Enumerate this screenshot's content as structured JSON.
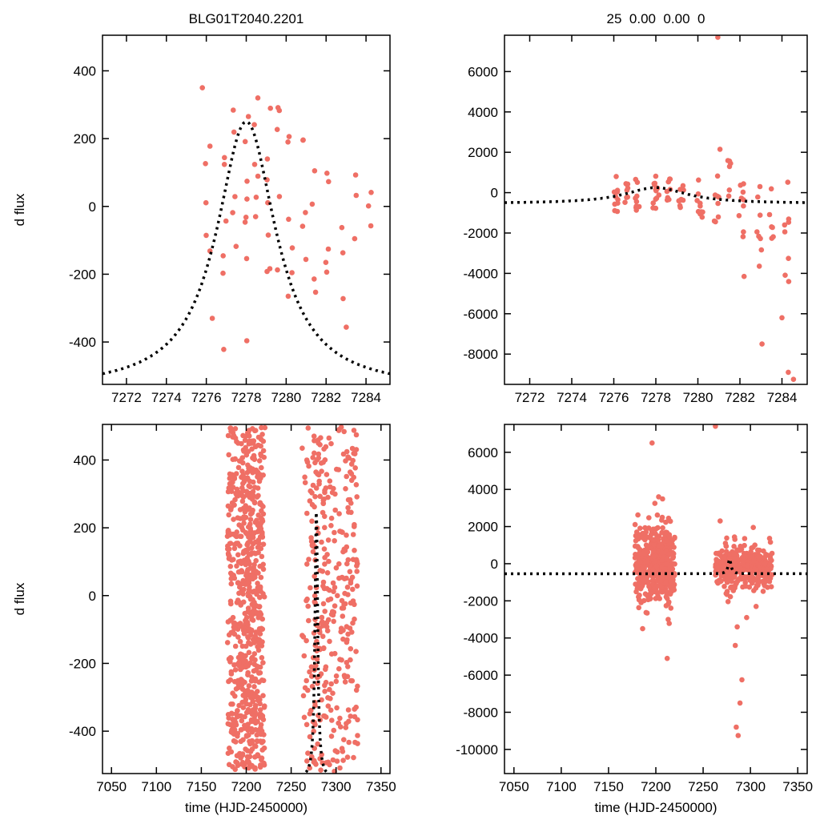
{
  "titles": {
    "top_left": "BLG01T2040.2201",
    "top_right": "25  0.00  0.00  0"
  },
  "axis_labels": {
    "y_left": "d flux",
    "x_bottom": "time (HJD-2450000)"
  },
  "colors": {
    "background": "#ffffff",
    "points": "#ef6f65",
    "model_curve": "#000000",
    "frame": "#000000"
  },
  "model_curve": {
    "shape": "microlensing_bump",
    "t0": 7278,
    "base": -540,
    "amplitude": 790,
    "width": 1.8,
    "power": 1.0
  },
  "chart_data": [
    {
      "id": "top-left",
      "type": "scatter",
      "title": "BLG01T2040.2201",
      "ylabel": "d flux",
      "xlabel": "",
      "xlim": [
        7270.8,
        7285.2
      ],
      "xticks": [
        7272,
        7274,
        7276,
        7278,
        7280,
        7282,
        7284
      ],
      "ylim": [
        -525,
        505
      ],
      "yticks": [
        -400,
        -200,
        0,
        200,
        400
      ],
      "grid": false,
      "show_curve": true,
      "point_clusters": [
        {
          "cx": 7276.1,
          "sx": 0.15,
          "n": 5,
          "dist": "uniform",
          "ymin": -340,
          "ymax": 360
        },
        {
          "cx": 7276.9,
          "sx": 0.12,
          "n": 6,
          "dist": "uniform",
          "ymin": -460,
          "ymax": 300
        },
        {
          "cx": 7277.4,
          "sx": 0.1,
          "n": 5,
          "dist": "uniform",
          "ymin": -150,
          "ymax": 490
        },
        {
          "cx": 7278.0,
          "sx": 0.12,
          "n": 8,
          "dist": "uniform",
          "ymin": -420,
          "ymax": 500
        },
        {
          "cx": 7278.5,
          "sx": 0.1,
          "n": 6,
          "dist": "uniform",
          "ymin": -120,
          "ymax": 430
        },
        {
          "cx": 7279.1,
          "sx": 0.12,
          "n": 7,
          "dist": "uniform",
          "ymin": -300,
          "ymax": 390
        },
        {
          "cx": 7279.6,
          "sx": 0.1,
          "n": 5,
          "dist": "uniform",
          "ymin": -220,
          "ymax": 300
        },
        {
          "cx": 7280.2,
          "sx": 0.12,
          "n": 6,
          "dist": "uniform",
          "ymin": -350,
          "ymax": 260
        },
        {
          "cx": 7280.9,
          "sx": 0.12,
          "n": 5,
          "dist": "uniform",
          "ymin": -160,
          "ymax": 240
        },
        {
          "cx": 7281.4,
          "sx": 0.1,
          "n": 4,
          "dist": "uniform",
          "ymin": -260,
          "ymax": 150
        },
        {
          "cx": 7282.1,
          "sx": 0.12,
          "n": 5,
          "dist": "uniform",
          "ymin": -310,
          "ymax": 110
        },
        {
          "cx": 7282.9,
          "sx": 0.12,
          "n": 4,
          "dist": "uniform",
          "ymin": -390,
          "ymax": -40
        },
        {
          "cx": 7283.5,
          "sx": 0.1,
          "n": 3,
          "dist": "uniform",
          "ymin": -160,
          "ymax": 180
        },
        {
          "cx": 7284.2,
          "sx": 0.1,
          "n": 3,
          "dist": "uniform",
          "ymin": -110,
          "ymax": 170
        }
      ],
      "outlier_points": [
        [
          7275.8,
          350
        ],
        [
          7276.3,
          -330
        ]
      ]
    },
    {
      "id": "top-right",
      "type": "scatter",
      "title": "25  0.00  0.00  0",
      "ylabel": "",
      "xlabel": "",
      "xlim": [
        7270.8,
        7285.2
      ],
      "xticks": [
        7272,
        7274,
        7276,
        7278,
        7280,
        7282,
        7284
      ],
      "ylim": [
        -9500,
        7800
      ],
      "yticks": [
        -8000,
        -6000,
        -4000,
        -2000,
        0,
        2000,
        4000,
        6000
      ],
      "grid": false,
      "show_curve": true,
      "point_clusters": [
        {
          "cx": 7276.1,
          "sx": 0.12,
          "n": 10,
          "dist": "uniform",
          "ymin": -1100,
          "ymax": 800
        },
        {
          "cx": 7276.6,
          "sx": 0.1,
          "n": 8,
          "dist": "uniform",
          "ymin": -700,
          "ymax": 900
        },
        {
          "cx": 7277.1,
          "sx": 0.12,
          "n": 9,
          "dist": "uniform",
          "ymin": -900,
          "ymax": 700
        },
        {
          "cx": 7278.0,
          "sx": 0.15,
          "n": 13,
          "dist": "uniform",
          "ymin": -800,
          "ymax": 900
        },
        {
          "cx": 7278.6,
          "sx": 0.1,
          "n": 8,
          "dist": "uniform",
          "ymin": -500,
          "ymax": 800
        },
        {
          "cx": 7279.2,
          "sx": 0.12,
          "n": 9,
          "dist": "uniform",
          "ymin": -900,
          "ymax": 600
        },
        {
          "cx": 7280.1,
          "sx": 0.15,
          "n": 10,
          "dist": "uniform",
          "ymin": -1300,
          "ymax": 800
        },
        {
          "cx": 7280.9,
          "sx": 0.12,
          "n": 8,
          "dist": "uniform",
          "ymin": -1500,
          "ymax": 900
        },
        {
          "cx": 7281.5,
          "sx": 0.1,
          "n": 6,
          "dist": "uniform",
          "ymin": -1000,
          "ymax": 2200
        },
        {
          "cx": 7282.1,
          "sx": 0.15,
          "n": 9,
          "dist": "uniform",
          "ymin": -3000,
          "ymax": 600
        },
        {
          "cx": 7282.9,
          "sx": 0.12,
          "n": 8,
          "dist": "uniform",
          "ymin": -4200,
          "ymax": 400
        },
        {
          "cx": 7283.5,
          "sx": 0.1,
          "n": 6,
          "dist": "uniform",
          "ymin": -2500,
          "ymax": 300
        },
        {
          "cx": 7284.2,
          "sx": 0.12,
          "n": 8,
          "dist": "uniform",
          "ymin": -5200,
          "ymax": 900
        }
      ],
      "outlier_points": [
        [
          7280.95,
          7700
        ],
        [
          7283.05,
          -7500
        ],
        [
          7284.3,
          -8900
        ],
        [
          7284.55,
          -9250
        ],
        [
          7281.05,
          2150
        ],
        [
          7282.2,
          -4150
        ],
        [
          7284.0,
          -6200
        ]
      ]
    },
    {
      "id": "bottom-left",
      "type": "scatter",
      "title": "",
      "ylabel": "d flux",
      "xlabel": "time (HJD-2450000)",
      "xlim": [
        7040,
        7360
      ],
      "xticks": [
        7050,
        7100,
        7150,
        7200,
        7250,
        7300,
        7350
      ],
      "ylim": [
        -525,
        505
      ],
      "yticks": [
        -400,
        -200,
        0,
        200,
        400
      ],
      "grid": false,
      "show_curve": true,
      "point_clusters": [
        {
          "cx": 7200,
          "sx": 21,
          "n": 500,
          "dist": "uniform",
          "ymin": -520,
          "ymax": 500
        },
        {
          "cx": 7206,
          "sx": 11,
          "n": 170,
          "dist": "uniform",
          "ymin": -520,
          "ymax": 500
        },
        {
          "cx": 7293,
          "sx": 31,
          "n": 250,
          "dist": "uniform",
          "ymin": -520,
          "ymax": 500
        },
        {
          "cx": 7280,
          "sx": 10,
          "n": 60,
          "dist": "uniform",
          "ymin": -500,
          "ymax": 480
        },
        {
          "cx": 7315,
          "sx": 9,
          "n": 40,
          "dist": "uniform",
          "ymin": -460,
          "ymax": 440
        }
      ],
      "outlier_points": []
    },
    {
      "id": "bottom-right",
      "type": "scatter",
      "title": "",
      "ylabel": "",
      "xlabel": "time (HJD-2450000)",
      "xlim": [
        7040,
        7360
      ],
      "xticks": [
        7050,
        7100,
        7150,
        7200,
        7250,
        7300,
        7350
      ],
      "ylim": [
        -11300,
        7500
      ],
      "yticks": [
        -10000,
        -8000,
        -6000,
        -4000,
        -2000,
        0,
        2000,
        4000,
        6000
      ],
      "grid": false,
      "show_curve": true,
      "point_clusters": [
        {
          "cx": 7199,
          "sx": 21,
          "n": 360,
          "dist": "normal",
          "ymean": 0,
          "ysd": 1150,
          "yclip": [
            -5200,
            6500
          ]
        },
        {
          "cx": 7206,
          "sx": 9,
          "n": 130,
          "dist": "normal",
          "ymean": 0,
          "ysd": 750,
          "yclip": [
            -3800,
            3800
          ]
        },
        {
          "cx": 7293,
          "sx": 30,
          "n": 320,
          "dist": "normal",
          "ymean": -150,
          "ysd": 520,
          "yclip": [
            -2800,
            2300
          ]
        },
        {
          "cx": 7280,
          "sx": 6,
          "n": 50,
          "dist": "normal",
          "ymean": -300,
          "ysd": 900,
          "yclip": [
            -4500,
            1500
          ]
        }
      ],
      "outlier_points": [
        [
          7263,
          7400
        ],
        [
          7196,
          6500
        ],
        [
          7203,
          3600
        ],
        [
          7199,
          3250
        ],
        [
          7212,
          -5100
        ],
        [
          7186,
          -3500
        ],
        [
          7285,
          -8800
        ],
        [
          7287,
          -9250
        ],
        [
          7289,
          -7500
        ],
        [
          7291,
          -6250
        ],
        [
          7284,
          -4400
        ],
        [
          7286,
          -3400
        ],
        [
          7268,
          2300
        ],
        [
          7303,
          1950
        ],
        [
          7296,
          -2900
        ],
        [
          7306,
          -2300
        ]
      ]
    }
  ]
}
